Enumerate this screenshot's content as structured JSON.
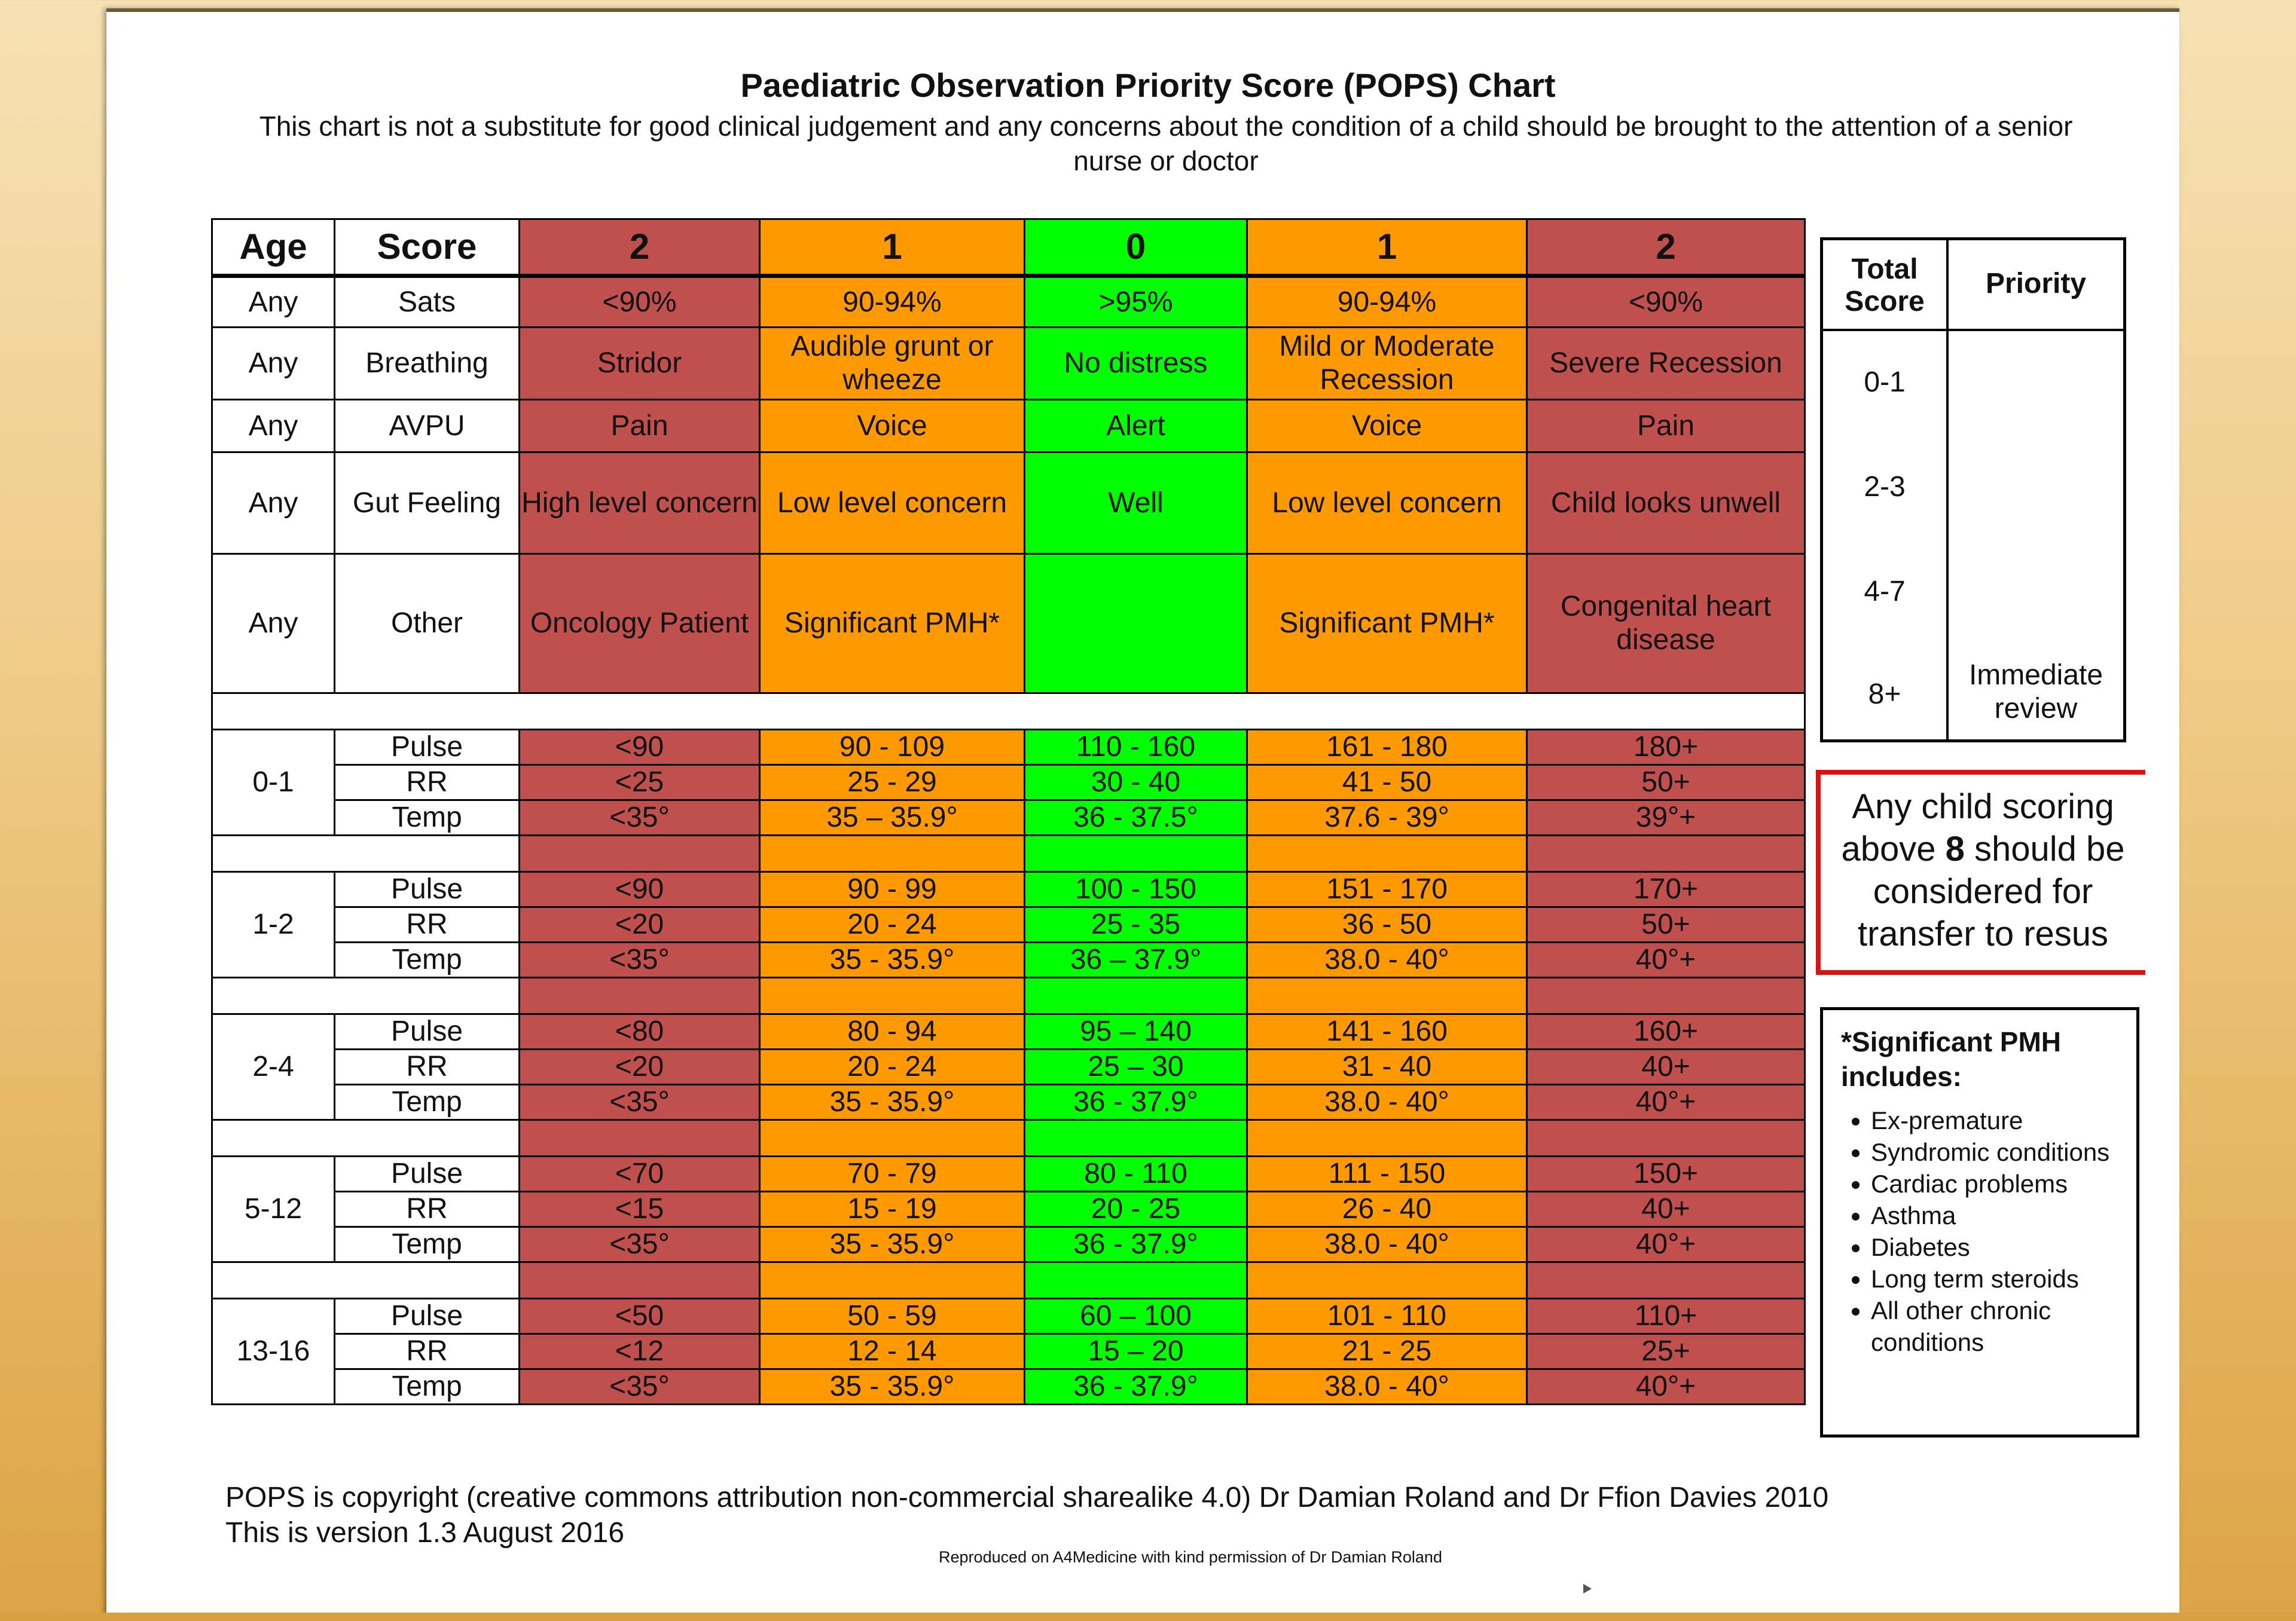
{
  "title": "Paediatric Observation Priority Score (POPS) Chart",
  "subtitle": "This chart is not a substitute for good clinical judgement and any concerns about the condition of a child should be brought to the attention of a senior nurse or doctor",
  "colors": {
    "score2": "#c0504d",
    "score1": "#ff9900",
    "score0": "#00ff00",
    "resus_border": "#e01010"
  },
  "table": {
    "headers": [
      "Age",
      "Score",
      "2",
      "1",
      "0",
      "1",
      "2"
    ],
    "general_rows": [
      {
        "age": "Any",
        "param": "Sats",
        "values": [
          "<90%",
          "90-94%",
          ">95%",
          "90-94%",
          "<90%"
        ]
      },
      {
        "age": "Any",
        "param": "Breathing",
        "values": [
          "Stridor",
          "Audible grunt or wheeze",
          "No distress",
          "Mild or Moderate Recession",
          "Severe Recession"
        ]
      },
      {
        "age": "Any",
        "param": "AVPU",
        "values": [
          "Pain",
          "Voice",
          "Alert",
          "Voice",
          "Pain"
        ]
      },
      {
        "age": "Any",
        "param": "Gut Feeling",
        "values": [
          "High level concern",
          "Low level concern",
          "Well",
          "Low level concern",
          "Child looks unwell"
        ]
      },
      {
        "age": "Any",
        "param": "Other",
        "values": [
          "Oncology Patient",
          "Significant PMH*",
          "",
          "Significant PMH*",
          "Congenital heart disease"
        ]
      }
    ],
    "age_groups": [
      {
        "age": "0-1",
        "rows": [
          {
            "param": "Pulse",
            "values": [
              "<90",
              "90 - 109",
              "110 - 160",
              "161 - 180",
              "180+"
            ]
          },
          {
            "param": "RR",
            "values": [
              "<25",
              "25 - 29",
              "30 - 40",
              "41 - 50",
              "50+"
            ]
          },
          {
            "param": "Temp",
            "values": [
              "<35°",
              "35 – 35.9°",
              "36 - 37.5°",
              "37.6 - 39°",
              "39°+"
            ]
          }
        ]
      },
      {
        "age": "1-2",
        "rows": [
          {
            "param": "Pulse",
            "values": [
              "<90",
              "90 - 99",
              "100 - 150",
              "151 - 170",
              "170+"
            ]
          },
          {
            "param": "RR",
            "values": [
              "<20",
              "20 - 24",
              "25 - 35",
              "36 - 50",
              "50+"
            ]
          },
          {
            "param": "Temp",
            "values": [
              "<35°",
              "35 - 35.9°",
              "36 – 37.9°",
              "38.0 - 40°",
              "40°+"
            ]
          }
        ]
      },
      {
        "age": "2-4",
        "rows": [
          {
            "param": "Pulse",
            "values": [
              "<80",
              "80 - 94",
              "95 – 140",
              "141 - 160",
              "160+"
            ]
          },
          {
            "param": "RR",
            "values": [
              "<20",
              "20 - 24",
              "25 – 30",
              "31 - 40",
              "40+"
            ]
          },
          {
            "param": "Temp",
            "values": [
              "<35°",
              "35 - 35.9°",
              "36 - 37.9°",
              "38.0 - 40°",
              "40°+"
            ]
          }
        ]
      },
      {
        "age": "5-12",
        "rows": [
          {
            "param": "Pulse",
            "values": [
              "<70",
              "70 - 79",
              "80 - 110",
              "111 - 150",
              "150+"
            ]
          },
          {
            "param": "RR",
            "values": [
              "<15",
              "15 - 19",
              "20 - 25",
              "26 - 40",
              "40+"
            ]
          },
          {
            "param": "Temp",
            "values": [
              "<35°",
              "35 - 35.9°",
              "36 - 37.9°",
              "38.0 - 40°",
              "40°+"
            ]
          }
        ]
      },
      {
        "age": "13-16",
        "rows": [
          {
            "param": "Pulse",
            "values": [
              "<50",
              "50 - 59",
              "60 – 100",
              "101 - 110",
              "110+"
            ]
          },
          {
            "param": "RR",
            "values": [
              "<12",
              "12 - 14",
              "15 – 20",
              "21 - 25",
              "25+"
            ]
          },
          {
            "param": "Temp",
            "values": [
              "<35°",
              "35 - 35.9°",
              "36 - 37.9°",
              "38.0 - 40°",
              "40°+"
            ]
          }
        ]
      }
    ]
  },
  "priority": {
    "header_total": "Total Score",
    "header_priority": "Priority",
    "rows": [
      {
        "score": "0-1",
        "priority": ""
      },
      {
        "score": "2-3",
        "priority": ""
      },
      {
        "score": "4-7",
        "priority": ""
      },
      {
        "score": "8+",
        "priority": "Immediate review"
      }
    ]
  },
  "resus": {
    "before": "Any child scoring above ",
    "bold": "8",
    "after": " should be considered for transfer to resus"
  },
  "pmh": {
    "heading": "*Significant PMH includes:",
    "items": [
      "Ex-premature",
      "Syndromic conditions",
      "Cardiac problems",
      "Asthma",
      "Diabetes",
      "Long term steroids",
      "All other chronic conditions"
    ]
  },
  "footer": {
    "copyright": "POPS is copyright (creative commons attribution non-commercial sharealike 4.0) Dr Damian Roland and Dr Ffion Davies 2010",
    "version": "This is version 1.3 August 2016",
    "reproduced": "Reproduced on A4Medicine with kind permission of Dr Damian Roland"
  }
}
